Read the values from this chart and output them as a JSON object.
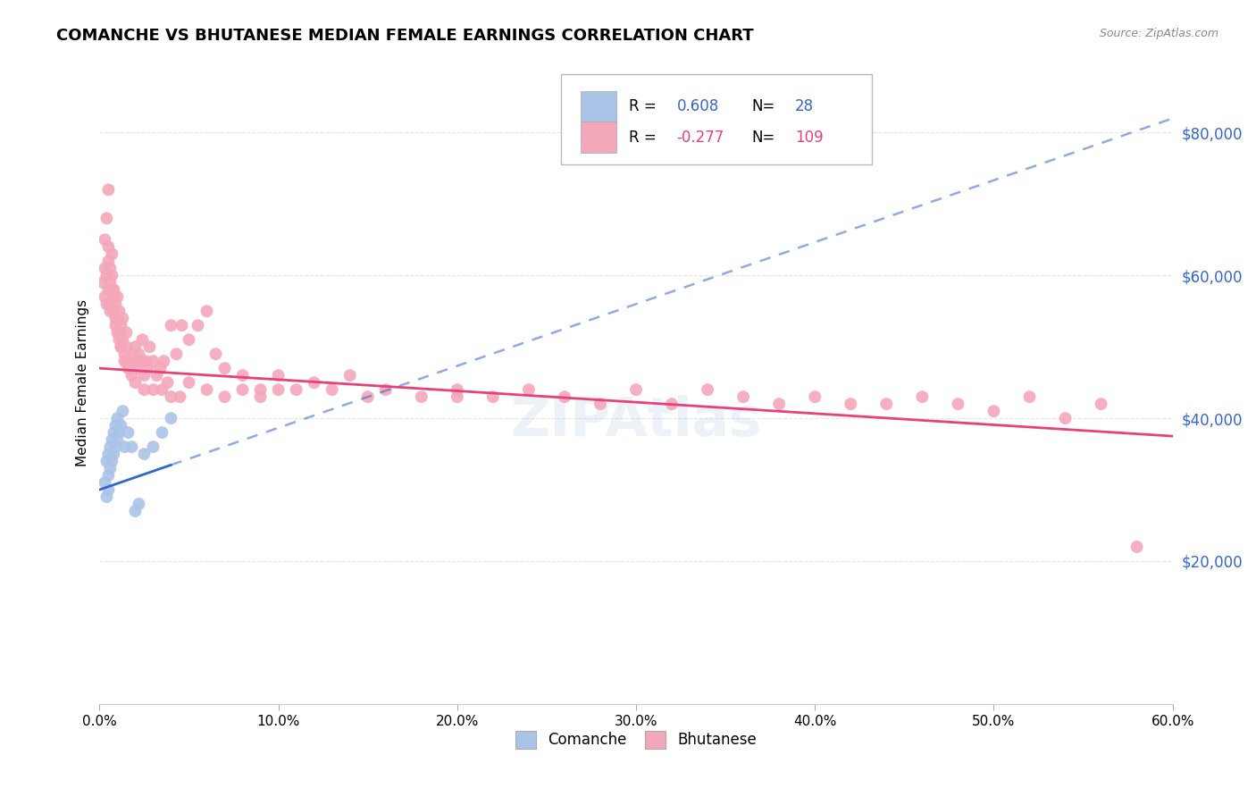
{
  "title": "COMANCHE VS BHUTANESE MEDIAN FEMALE EARNINGS CORRELATION CHART",
  "source": "Source: ZipAtlas.com",
  "ylabel": "Median Female Earnings",
  "xlim": [
    0.0,
    0.6
  ],
  "ylim": [
    0,
    90000
  ],
  "yticks": [
    0,
    20000,
    40000,
    60000,
    80000
  ],
  "ytick_labels": [
    "",
    "$20,000",
    "$40,000",
    "$60,000",
    "$80,000"
  ],
  "comanche_R": 0.608,
  "comanche_N": 28,
  "bhutanese_R": -0.277,
  "bhutanese_N": 109,
  "comanche_color": "#aac4e8",
  "bhutanese_color": "#f4a7b9",
  "trendline_comanche_color": "#3366cc",
  "trendline_bhutanese_color": "#e8417a",
  "comanche_trend_x0": 0.0,
  "comanche_trend_y0": 30000,
  "comanche_trend_x1": 0.6,
  "comanche_trend_y1": 82000,
  "bhutanese_trend_x0": 0.0,
  "bhutanese_trend_y0": 47000,
  "bhutanese_trend_x1": 0.6,
  "bhutanese_trend_y1": 37500,
  "comanche_x": [
    0.003,
    0.004,
    0.004,
    0.005,
    0.005,
    0.005,
    0.006,
    0.006,
    0.007,
    0.007,
    0.008,
    0.008,
    0.009,
    0.009,
    0.01,
    0.01,
    0.011,
    0.012,
    0.013,
    0.014,
    0.016,
    0.018,
    0.02,
    0.022,
    0.025,
    0.03,
    0.035,
    0.04
  ],
  "comanche_y": [
    31000,
    29000,
    34000,
    32000,
    30000,
    35000,
    33000,
    36000,
    34000,
    37000,
    35000,
    38000,
    36000,
    39000,
    37000,
    40000,
    38000,
    39000,
    41000,
    36000,
    38000,
    36000,
    27000,
    28000,
    35000,
    36000,
    38000,
    40000
  ],
  "bhutanese_x": [
    0.002,
    0.003,
    0.003,
    0.004,
    0.004,
    0.005,
    0.005,
    0.005,
    0.006,
    0.006,
    0.006,
    0.007,
    0.007,
    0.008,
    0.008,
    0.009,
    0.009,
    0.01,
    0.01,
    0.011,
    0.011,
    0.012,
    0.012,
    0.013,
    0.013,
    0.014,
    0.015,
    0.015,
    0.016,
    0.017,
    0.018,
    0.019,
    0.02,
    0.021,
    0.022,
    0.023,
    0.024,
    0.025,
    0.026,
    0.027,
    0.028,
    0.03,
    0.032,
    0.034,
    0.036,
    0.038,
    0.04,
    0.043,
    0.046,
    0.05,
    0.055,
    0.06,
    0.065,
    0.07,
    0.08,
    0.09,
    0.1,
    0.11,
    0.12,
    0.13,
    0.14,
    0.16,
    0.18,
    0.2,
    0.22,
    0.24,
    0.26,
    0.28,
    0.3,
    0.32,
    0.34,
    0.36,
    0.38,
    0.4,
    0.42,
    0.44,
    0.46,
    0.48,
    0.5,
    0.52,
    0.54,
    0.56,
    0.003,
    0.004,
    0.005,
    0.006,
    0.007,
    0.008,
    0.009,
    0.01,
    0.011,
    0.012,
    0.014,
    0.016,
    0.018,
    0.02,
    0.025,
    0.03,
    0.035,
    0.04,
    0.045,
    0.05,
    0.06,
    0.07,
    0.08,
    0.09,
    0.1,
    0.15,
    0.2,
    0.58
  ],
  "bhutanese_y": [
    59000,
    57000,
    61000,
    60000,
    56000,
    58000,
    62000,
    64000,
    59000,
    56000,
    61000,
    58000,
    63000,
    55000,
    57000,
    53000,
    56000,
    52000,
    54000,
    51000,
    55000,
    50000,
    53000,
    51000,
    54000,
    49000,
    50000,
    52000,
    48000,
    47000,
    49000,
    48000,
    50000,
    47000,
    49000,
    48000,
    51000,
    46000,
    48000,
    47000,
    50000,
    48000,
    46000,
    47000,
    48000,
    45000,
    53000,
    49000,
    53000,
    51000,
    53000,
    55000,
    49000,
    47000,
    44000,
    44000,
    46000,
    44000,
    45000,
    44000,
    46000,
    44000,
    43000,
    44000,
    43000,
    44000,
    43000,
    42000,
    44000,
    42000,
    44000,
    43000,
    42000,
    43000,
    42000,
    42000,
    43000,
    42000,
    41000,
    43000,
    40000,
    42000,
    65000,
    68000,
    72000,
    55000,
    60000,
    58000,
    54000,
    57000,
    52000,
    50000,
    48000,
    47000,
    46000,
    45000,
    44000,
    44000,
    44000,
    43000,
    43000,
    45000,
    44000,
    43000,
    46000,
    43000,
    44000,
    43000,
    43000,
    22000
  ],
  "background_color": "#ffffff",
  "grid_color": "#e0e0e0"
}
